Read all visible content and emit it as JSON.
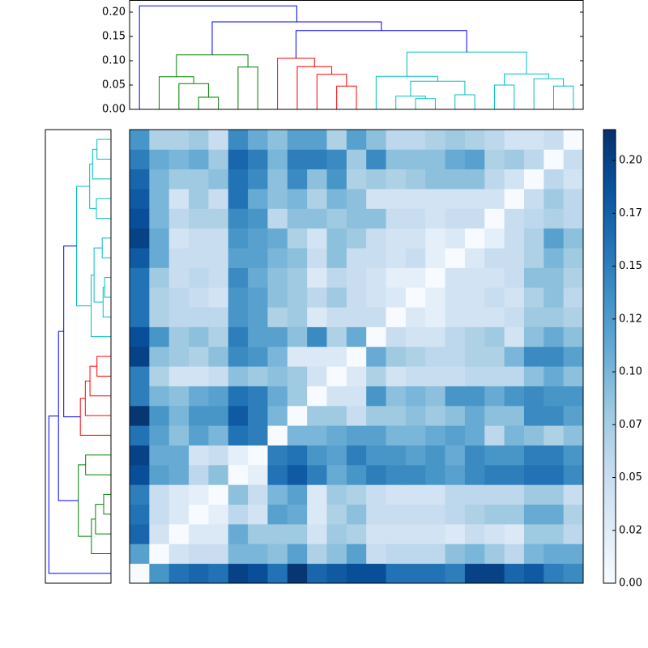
{
  "chart_data": {
    "type": "clustermap",
    "colormap": [
      "#f7fbff",
      "#deebf7",
      "#c6dbef",
      "#9ecae1",
      "#6baed6",
      "#4292c6",
      "#2171b5",
      "#08519c",
      "#08306b"
    ],
    "zlim": [
      0,
      0.2146
    ],
    "zticks": [
      {
        "value": 0,
        "label": "0.00"
      },
      {
        "value": 0.025,
        "label": "0.02"
      },
      {
        "value": 0.05,
        "label": "0.05"
      },
      {
        "value": 0.075,
        "label": "0.07"
      },
      {
        "value": 0.1,
        "label": "0.10"
      },
      {
        "value": 0.125,
        "label": "0.12"
      },
      {
        "value": 0.15,
        "label": "0.15"
      },
      {
        "value": 0.175,
        "label": "0.17"
      },
      {
        "value": 0.2,
        "label": "0.20"
      }
    ],
    "matrix": [
      [
        0,
        0.13,
        0.16,
        0.17,
        0.16,
        0.2,
        0.19,
        0.16,
        0.21,
        0.17,
        0.18,
        0.19,
        0.19,
        0.16,
        0.16,
        0.16,
        0.15,
        0.2,
        0.2,
        0.17,
        0.18,
        0.15,
        0.14
      ],
      [
        0.12,
        0,
        0.04,
        0.05,
        0.05,
        0.1,
        0.1,
        0.09,
        0.12,
        0.07,
        0.09,
        0.12,
        0.05,
        0.06,
        0.06,
        0.06,
        0.09,
        0.1,
        0.08,
        0.06,
        0.1,
        0.11,
        0.11
      ],
      [
        0.17,
        0.04,
        0,
        0.03,
        0.03,
        0.11,
        0.08,
        0.08,
        0.08,
        0.04,
        0.08,
        0.07,
        0.04,
        0.04,
        0.04,
        0.04,
        0.03,
        0.05,
        0.04,
        0.03,
        0.08,
        0.08,
        0.06
      ],
      [
        0.16,
        0.05,
        0.03,
        0,
        0.02,
        0.06,
        0.04,
        0.12,
        0.11,
        0.03,
        0.07,
        0.09,
        0.05,
        0.05,
        0.05,
        0.05,
        0.06,
        0.07,
        0.08,
        0.08,
        0.11,
        0.11,
        0.07
      ],
      [
        0.15,
        0.05,
        0.03,
        0.02,
        0,
        0.09,
        0.05,
        0.1,
        0.12,
        0.03,
        0.08,
        0.07,
        0.05,
        0.04,
        0.04,
        0.04,
        0.06,
        0.06,
        0.06,
        0.06,
        0.08,
        0.08,
        0.05
      ],
      [
        0.19,
        0.12,
        0.11,
        0.06,
        0.09,
        0,
        0.02,
        0.16,
        0.18,
        0.15,
        0.11,
        0.13,
        0.15,
        0.14,
        0.14,
        0.13,
        0.12,
        0.14,
        0.15,
        0.15,
        0.16,
        0.16,
        0.14
      ],
      [
        0.2,
        0.11,
        0.11,
        0.04,
        0.05,
        0.02,
        0,
        0.15,
        0.16,
        0.13,
        0.12,
        0.15,
        0.13,
        0.13,
        0.12,
        0.13,
        0.11,
        0.14,
        0.13,
        0.13,
        0.15,
        0.15,
        0.13
      ],
      [
        0.16,
        0.12,
        0.09,
        0.12,
        0.1,
        0.16,
        0.15,
        0,
        0.1,
        0.1,
        0.11,
        0.12,
        0.12,
        0.1,
        0.1,
        0.11,
        0.12,
        0.11,
        0.06,
        0.1,
        0.09,
        0.07,
        0.09
      ],
      [
        0.21,
        0.13,
        0.1,
        0.13,
        0.13,
        0.18,
        0.15,
        0.1,
        0,
        0.08,
        0.08,
        0.05,
        0.08,
        0.08,
        0.09,
        0.08,
        0.09,
        0.11,
        0.09,
        0.09,
        0.14,
        0.14,
        0.12
      ],
      [
        0.15,
        0.1,
        0.09,
        0.11,
        0.12,
        0.16,
        0.15,
        0.11,
        0.08,
        0,
        0.04,
        0.04,
        0.13,
        0.09,
        0.1,
        0.09,
        0.13,
        0.13,
        0.11,
        0.13,
        0.14,
        0.13,
        0.13
      ],
      [
        0.15,
        0.07,
        0.04,
        0.04,
        0.05,
        0.09,
        0.08,
        0.09,
        0.08,
        0.04,
        0,
        0.03,
        0.07,
        0.04,
        0.05,
        0.05,
        0.05,
        0.06,
        0.06,
        0.06,
        0.09,
        0.11,
        0.09
      ],
      [
        0.2,
        0.09,
        0.08,
        0.07,
        0.09,
        0.14,
        0.13,
        0.1,
        0.03,
        0.03,
        0.03,
        0,
        0.11,
        0.08,
        0.07,
        0.06,
        0.06,
        0.07,
        0.07,
        0.1,
        0.14,
        0.14,
        0.12
      ],
      [
        0.19,
        0.13,
        0.08,
        0.09,
        0.07,
        0.15,
        0.12,
        0.12,
        0.09,
        0.14,
        0.07,
        0.11,
        0,
        0.05,
        0.04,
        0.04,
        0.06,
        0.07,
        0.08,
        0.04,
        0.09,
        0.11,
        0.09
      ],
      [
        0.16,
        0.07,
        0.06,
        0.06,
        0.06,
        0.13,
        0.12,
        0.07,
        0.08,
        0.03,
        0.05,
        0.05,
        0.05,
        0,
        0.03,
        0.02,
        0.04,
        0.04,
        0.04,
        0.05,
        0.08,
        0.08,
        0.07
      ],
      [
        0.16,
        0.07,
        0.06,
        0.05,
        0.04,
        0.13,
        0.12,
        0.09,
        0.08,
        0.06,
        0.08,
        0.05,
        0.04,
        0.03,
        0,
        0.02,
        0.04,
        0.04,
        0.05,
        0.04,
        0.07,
        0.09,
        0.06
      ],
      [
        0.16,
        0.08,
        0.05,
        0.06,
        0.05,
        0.14,
        0.11,
        0.09,
        0.08,
        0.03,
        0.06,
        0.05,
        0.04,
        0.02,
        0.02,
        0,
        0.04,
        0.04,
        0.04,
        0.05,
        0.09,
        0.09,
        0.07
      ],
      [
        0.18,
        0.11,
        0.05,
        0.05,
        0.05,
        0.12,
        0.12,
        0.1,
        0.09,
        0.05,
        0.09,
        0.05,
        0.05,
        0.04,
        0.05,
        0.02,
        0,
        0.03,
        0.05,
        0.05,
        0.07,
        0.1,
        0.08
      ],
      [
        0.2,
        0.11,
        0.04,
        0.05,
        0.05,
        0.13,
        0.12,
        0.11,
        0.07,
        0.04,
        0.09,
        0.08,
        0.05,
        0.04,
        0.04,
        0.02,
        0.03,
        0,
        0.02,
        0.05,
        0.07,
        0.12,
        0.09
      ],
      [
        0.19,
        0.1,
        0.06,
        0.07,
        0.07,
        0.14,
        0.13,
        0.06,
        0.09,
        0.09,
        0.08,
        0.09,
        0.09,
        0.05,
        0.05,
        0.04,
        0.05,
        0.05,
        0,
        0.05,
        0.06,
        0.07,
        0.06
      ],
      [
        0.18,
        0.1,
        0.04,
        0.08,
        0.05,
        0.16,
        0.11,
        0.09,
        0.1,
        0.07,
        0.1,
        0.09,
        0.04,
        0.04,
        0.04,
        0.04,
        0.04,
        0.04,
        0.04,
        0,
        0.05,
        0.08,
        0.06
      ],
      [
        0.17,
        0.1,
        0.08,
        0.08,
        0.09,
        0.16,
        0.14,
        0.09,
        0.14,
        0.09,
        0.13,
        0.07,
        0.08,
        0.07,
        0.08,
        0.09,
        0.09,
        0.09,
        0.06,
        0.04,
        0,
        0.06,
        0.04
      ],
      [
        0.15,
        0.11,
        0.1,
        0.11,
        0.08,
        0.17,
        0.15,
        0.1,
        0.15,
        0.15,
        0.14,
        0.08,
        0.14,
        0.09,
        0.09,
        0.09,
        0.11,
        0.12,
        0.07,
        0.08,
        0.06,
        0,
        0.05
      ],
      [
        0.13,
        0.07,
        0.07,
        0.08,
        0.05,
        0.14,
        0.11,
        0.09,
        0.12,
        0.12,
        0.07,
        0.12,
        0.09,
        0.06,
        0.06,
        0.07,
        0.08,
        0.07,
        0.06,
        0.04,
        0.04,
        0.05,
        0
      ]
    ],
    "dendrogram": {
      "xlim": [
        -0.5,
        22.5
      ],
      "ylim": [
        0,
        0.225
      ],
      "yticks": [
        {
          "value": 0,
          "label": "0.00"
        },
        0.05,
        {
          "value": 0.1,
          "label": "0.10"
        },
        0.15,
        {
          "value": 0.2,
          "label": "0.20"
        }
      ],
      "links": [
        {
          "x": [
            3,
            3,
            4,
            4
          ],
          "heights": [
            0,
            0.025,
            0.025,
            0
          ],
          "color": "#008000"
        },
        {
          "x": [
            2,
            2,
            3.5,
            3.5
          ],
          "heights": [
            0,
            0.053,
            0.053,
            0.025
          ],
          "color": "#008000"
        },
        {
          "x": [
            1,
            1,
            2.75,
            2.75
          ],
          "heights": [
            0,
            0.067,
            0.067,
            0.053
          ],
          "color": "#008000"
        },
        {
          "x": [
            5,
            5,
            6,
            6
          ],
          "heights": [
            0,
            0.087,
            0.087,
            0
          ],
          "color": "#008000"
        },
        {
          "x": [
            1.875,
            1.875,
            5.5,
            5.5
          ],
          "heights": [
            0.067,
            0.112,
            0.112,
            0.087
          ],
          "color": "#008000"
        },
        {
          "x": [
            10,
            10,
            11,
            11
          ],
          "heights": [
            0,
            0.048,
            0.048,
            0
          ],
          "color": "#ff0000"
        },
        {
          "x": [
            9,
            9,
            10.5,
            10.5
          ],
          "heights": [
            0,
            0.072,
            0.072,
            0.048
          ],
          "color": "#ff0000"
        },
        {
          "x": [
            8,
            8,
            9.75,
            9.75
          ],
          "heights": [
            0,
            0.088,
            0.088,
            0.072
          ],
          "color": "#ff0000"
        },
        {
          "x": [
            7,
            7,
            8.875,
            8.875
          ],
          "heights": [
            0,
            0.105,
            0.105,
            0.088
          ],
          "color": "#ff0000"
        },
        {
          "x": [
            14,
            14,
            15,
            15
          ],
          "heights": [
            0,
            0.022,
            0.022,
            0
          ],
          "color": "#00bfbf"
        },
        {
          "x": [
            13,
            13,
            14.5,
            14.5
          ],
          "heights": [
            0,
            0.027,
            0.027,
            0.022
          ],
          "color": "#00bfbf"
        },
        {
          "x": [
            16,
            16,
            17,
            17
          ],
          "heights": [
            0,
            0.03,
            0.03,
            0
          ],
          "color": "#00bfbf"
        },
        {
          "x": [
            13.75,
            13.75,
            16.5,
            16.5
          ],
          "heights": [
            0.027,
            0.058,
            0.058,
            0.03
          ],
          "color": "#00bfbf"
        },
        {
          "x": [
            12,
            12,
            15.125,
            15.125
          ],
          "heights": [
            0,
            0.068,
            0.068,
            0.058
          ],
          "color": "#00bfbf"
        },
        {
          "x": [
            18,
            18,
            19,
            19
          ],
          "heights": [
            0,
            0.05,
            0.05,
            0
          ],
          "color": "#00bfbf"
        },
        {
          "x": [
            21,
            21,
            22,
            22
          ],
          "heights": [
            0,
            0.048,
            0.048,
            0
          ],
          "color": "#00bfbf"
        },
        {
          "x": [
            20,
            20,
            21.5,
            21.5
          ],
          "heights": [
            0,
            0.063,
            0.063,
            0.048
          ],
          "color": "#00bfbf"
        },
        {
          "x": [
            18.5,
            18.5,
            20.75,
            20.75
          ],
          "heights": [
            0.05,
            0.073,
            0.073,
            0.063
          ],
          "color": "#00bfbf"
        },
        {
          "x": [
            13.5625,
            13.5625,
            19.625,
            19.625
          ],
          "heights": [
            0.068,
            0.118,
            0.118,
            0.073
          ],
          "color": "#00bfbf"
        },
        {
          "x": [
            7.9375,
            7.9375,
            16.59375,
            16.59375
          ],
          "heights": [
            0.105,
            0.162,
            0.162,
            0.118
          ],
          "color": "#0000ff"
        },
        {
          "x": [
            3.6875,
            3.6875,
            12.265625,
            12.265625
          ],
          "heights": [
            0.112,
            0.18,
            0.18,
            0.162
          ],
          "color": "#0000ff"
        },
        {
          "x": [
            0,
            0,
            7.9765625,
            7.9765625
          ],
          "heights": [
            0,
            0.213,
            0.213,
            0.18
          ],
          "color": "#0000ff"
        }
      ]
    }
  }
}
